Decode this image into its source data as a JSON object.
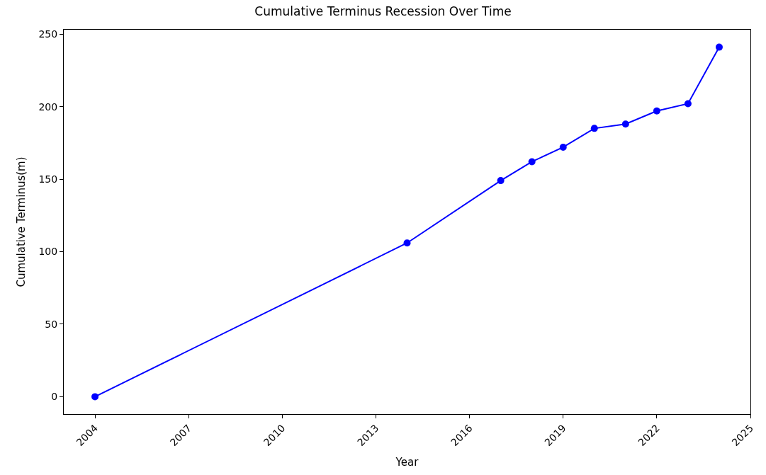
{
  "chart_data": {
    "type": "line",
    "title": "Cumulative Terminus Recession Over Time",
    "xlabel": "Year",
    "ylabel": "Cumulative Terminus(m)",
    "x": [
      2004,
      2014,
      2017,
      2018,
      2019,
      2020,
      2021,
      2022,
      2023,
      2024
    ],
    "series": [
      {
        "color": "#0000ff",
        "values": [
          0,
          106,
          149,
          162,
          172,
          185,
          188,
          197,
          202,
          241
        ]
      }
    ],
    "xlim": [
      2003,
      2025
    ],
    "xticks": [
      2004,
      2007,
      2010,
      2013,
      2016,
      2019,
      2022,
      2025
    ],
    "ylim": [
      -12,
      253
    ],
    "yticks": [
      0,
      50,
      100,
      150,
      200,
      250
    ],
    "marker": "circle",
    "line_style": "solid",
    "legend": false
  }
}
